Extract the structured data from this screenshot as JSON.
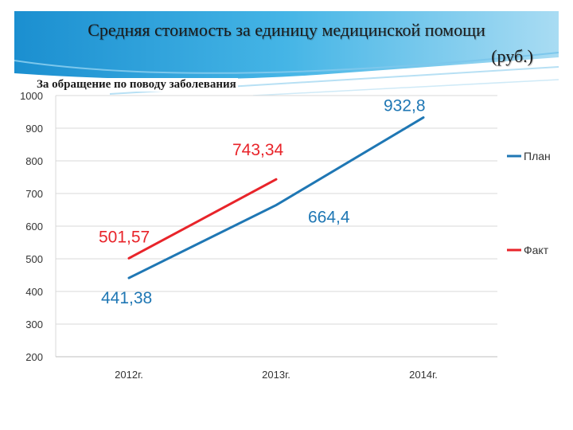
{
  "header": {
    "title_line1": "Средняя стоимость за единицу медицинской помощи",
    "title_line2": "(руб.)",
    "subtitle": "За обращение по поводу заболевания"
  },
  "colors": {
    "plan": "#1f77b4",
    "fact": "#e8242a",
    "grid": "#d9d9d9",
    "header_blue": "#2a9fd8"
  },
  "chart_data": {
    "type": "line",
    "categories": [
      "2012г.",
      "2013г.",
      "2014г."
    ],
    "series": [
      {
        "name": "План",
        "values": [
          441.38,
          664.4,
          932.8
        ],
        "labels": [
          "441,38",
          "664,4",
          "932,8"
        ]
      },
      {
        "name": "Факт",
        "values": [
          501.57,
          743.34,
          null
        ],
        "labels": [
          "501,57",
          "743,34",
          ""
        ]
      }
    ],
    "ylim": [
      200,
      1000
    ],
    "yticks": [
      200,
      300,
      400,
      500,
      600,
      700,
      800,
      900,
      1000
    ],
    "grid": true,
    "legend_position": "right"
  }
}
